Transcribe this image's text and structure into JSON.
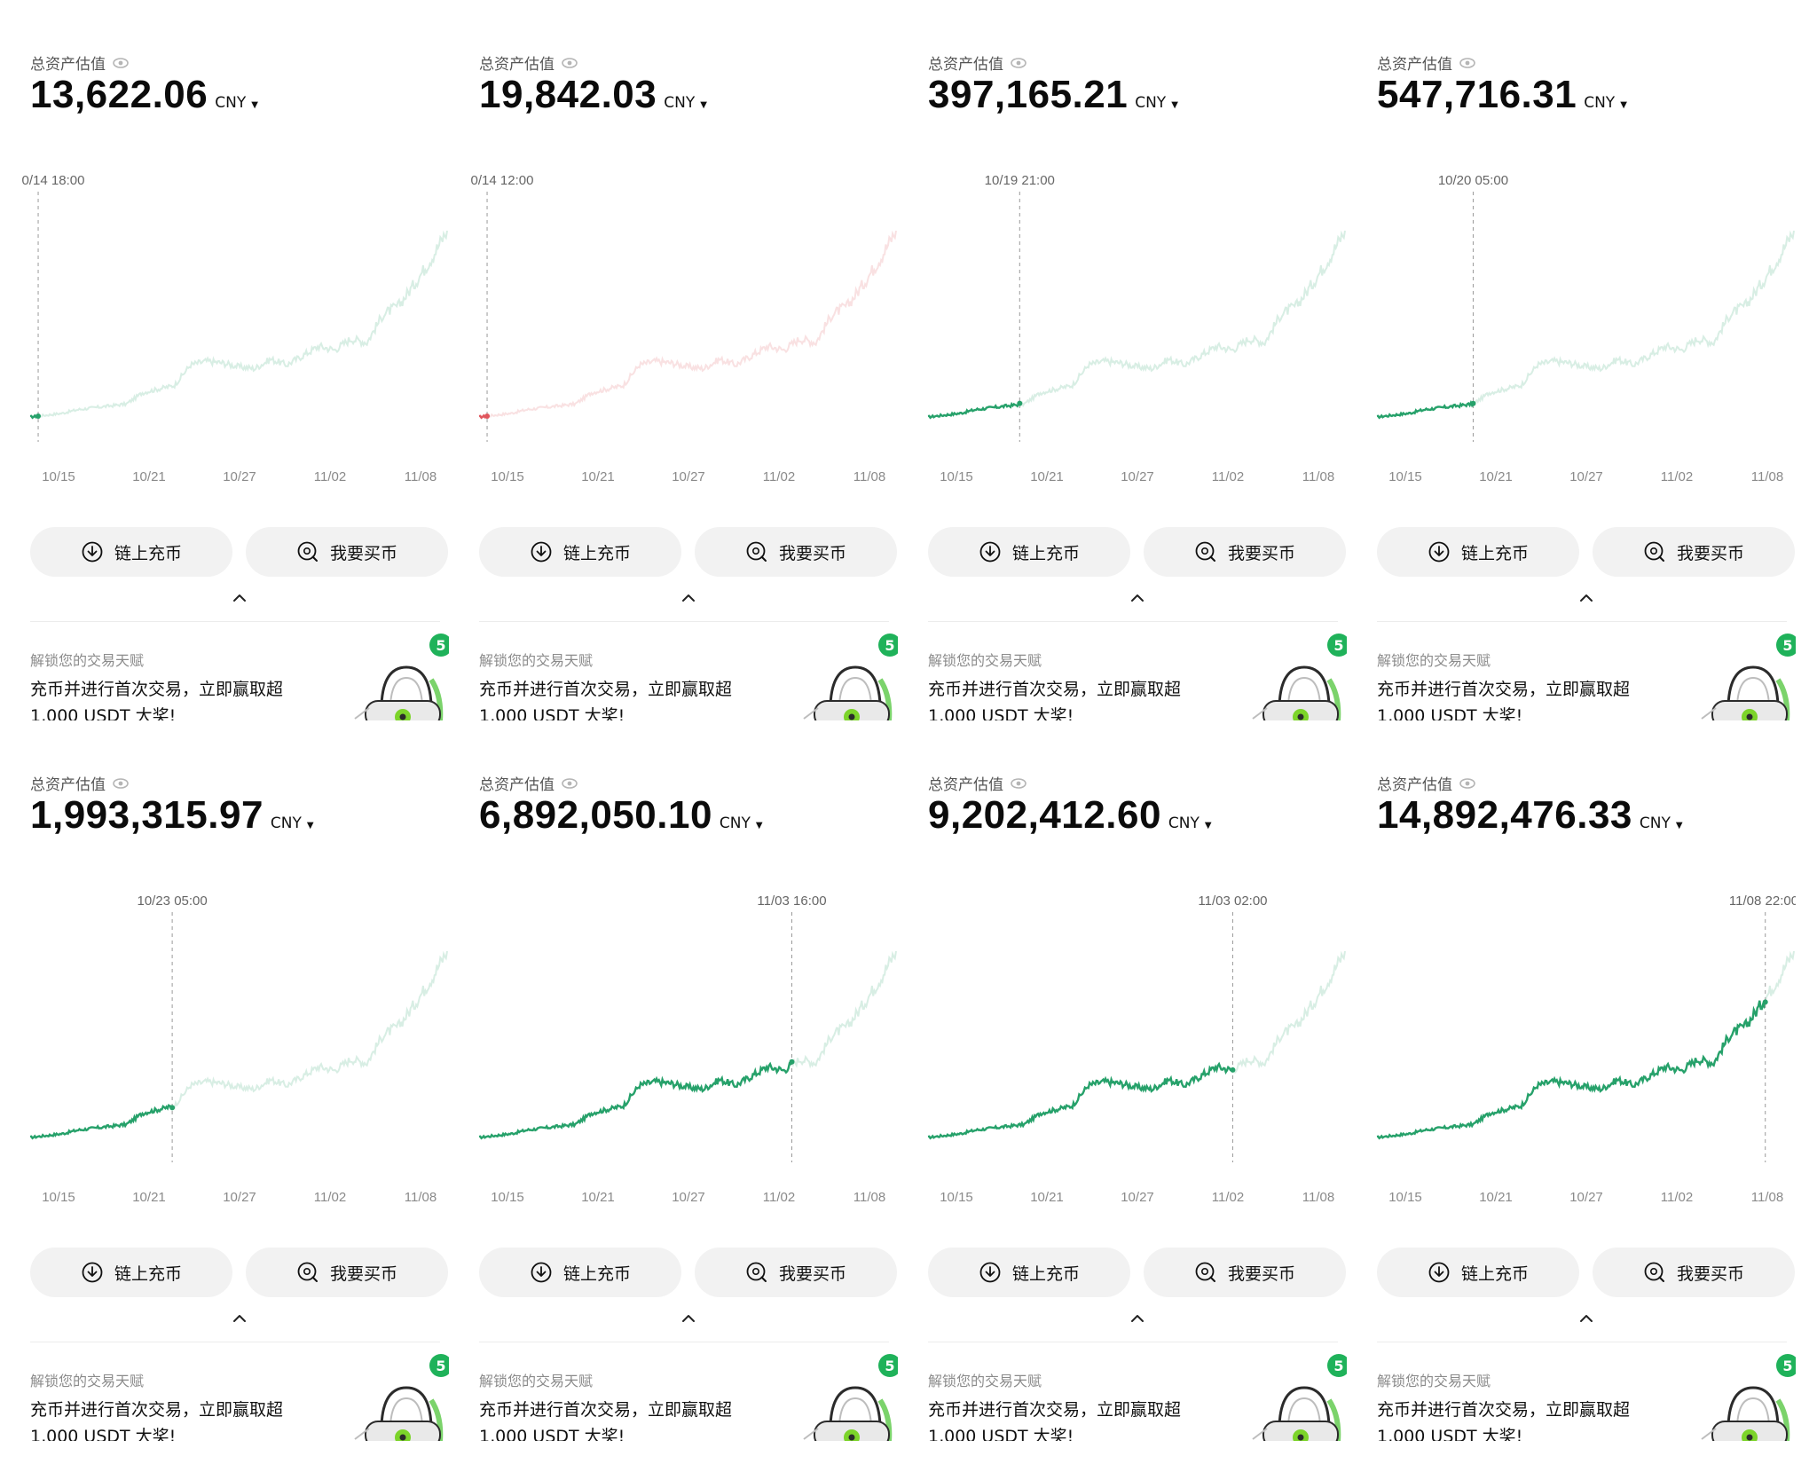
{
  "common": {
    "asset_label": "总资产估值",
    "currency": "CNY",
    "deposit_label": "链上充币",
    "buy_label": "我要买币",
    "promo_title": "解锁您的交易天赋",
    "promo_line1": "充币并进行首次交易，立即赢取超",
    "promo_line2": "1,000 USDT 大奖!",
    "badge_count": "5",
    "x_ticks": [
      "10/15",
      "10/21",
      "10/27",
      "11/02",
      "11/08"
    ],
    "colors": {
      "up": "#26a16a",
      "down": "#e0565d",
      "button_bg": "#f2f2f2",
      "badge": "#1fb25a"
    },
    "icons": {
      "eye": "eye-icon",
      "deposit": "download-arrow-icon",
      "buy": "search-coin-icon",
      "collapse": "chevron-up-icon",
      "lock": "lock-illustration-icon",
      "caret": "caret-down-icon"
    }
  },
  "panels": [
    {
      "id": 1,
      "balance": "13,622.06",
      "hover_time": "0/14 18:00",
      "hover_fraction": 0.02,
      "color": "up"
    },
    {
      "id": 2,
      "balance": "19,842.03",
      "hover_time": "0/14 12:00",
      "hover_fraction": 0.02,
      "color": "down"
    },
    {
      "id": 3,
      "balance": "397,165.21",
      "hover_time": "10/19 21:00",
      "hover_fraction": 0.22,
      "color": "up"
    },
    {
      "id": 4,
      "balance": "547,716.31",
      "hover_time": "10/20 05:00",
      "hover_fraction": 0.23,
      "color": "up"
    },
    {
      "id": 5,
      "balance": "1,993,315.97",
      "hover_time": "10/23 05:00",
      "hover_fraction": 0.34,
      "color": "up"
    },
    {
      "id": 6,
      "balance": "6,892,050.10",
      "hover_time": "11/03 16:00",
      "hover_fraction": 0.75,
      "color": "up"
    },
    {
      "id": 7,
      "balance": "9,202,412.60",
      "hover_time": "11/03 02:00",
      "hover_fraction": 0.73,
      "color": "up"
    },
    {
      "id": 8,
      "balance": "14,892,476.33",
      "hover_time": "11/08 22:00",
      "hover_fraction": 0.93,
      "color": "up"
    }
  ],
  "chart_data": {
    "type": "line",
    "title": "",
    "xlabel": "",
    "ylabel": "",
    "x": [
      "10/14",
      "10/15",
      "10/16",
      "10/17",
      "10/18",
      "10/19",
      "10/20",
      "10/21",
      "10/22",
      "10/23",
      "10/24",
      "10/25",
      "10/26",
      "10/27",
      "10/28",
      "10/29",
      "10/30",
      "10/31",
      "11/01",
      "11/02",
      "11/03",
      "11/04",
      "11/05",
      "11/06",
      "11/07",
      "11/08",
      "11/09"
    ],
    "series": [
      {
        "name": "总资产估值 (relative)",
        "values": [
          0.0,
          0.01,
          0.02,
          0.04,
          0.05,
          0.06,
          0.07,
          0.13,
          0.15,
          0.17,
          0.28,
          0.3,
          0.29,
          0.27,
          0.26,
          0.31,
          0.28,
          0.33,
          0.38,
          0.36,
          0.42,
          0.4,
          0.55,
          0.6,
          0.72,
          0.85,
          1.0
        ]
      }
    ],
    "ylim": [
      0,
      1
    ],
    "grid": false,
    "legend": "none"
  }
}
